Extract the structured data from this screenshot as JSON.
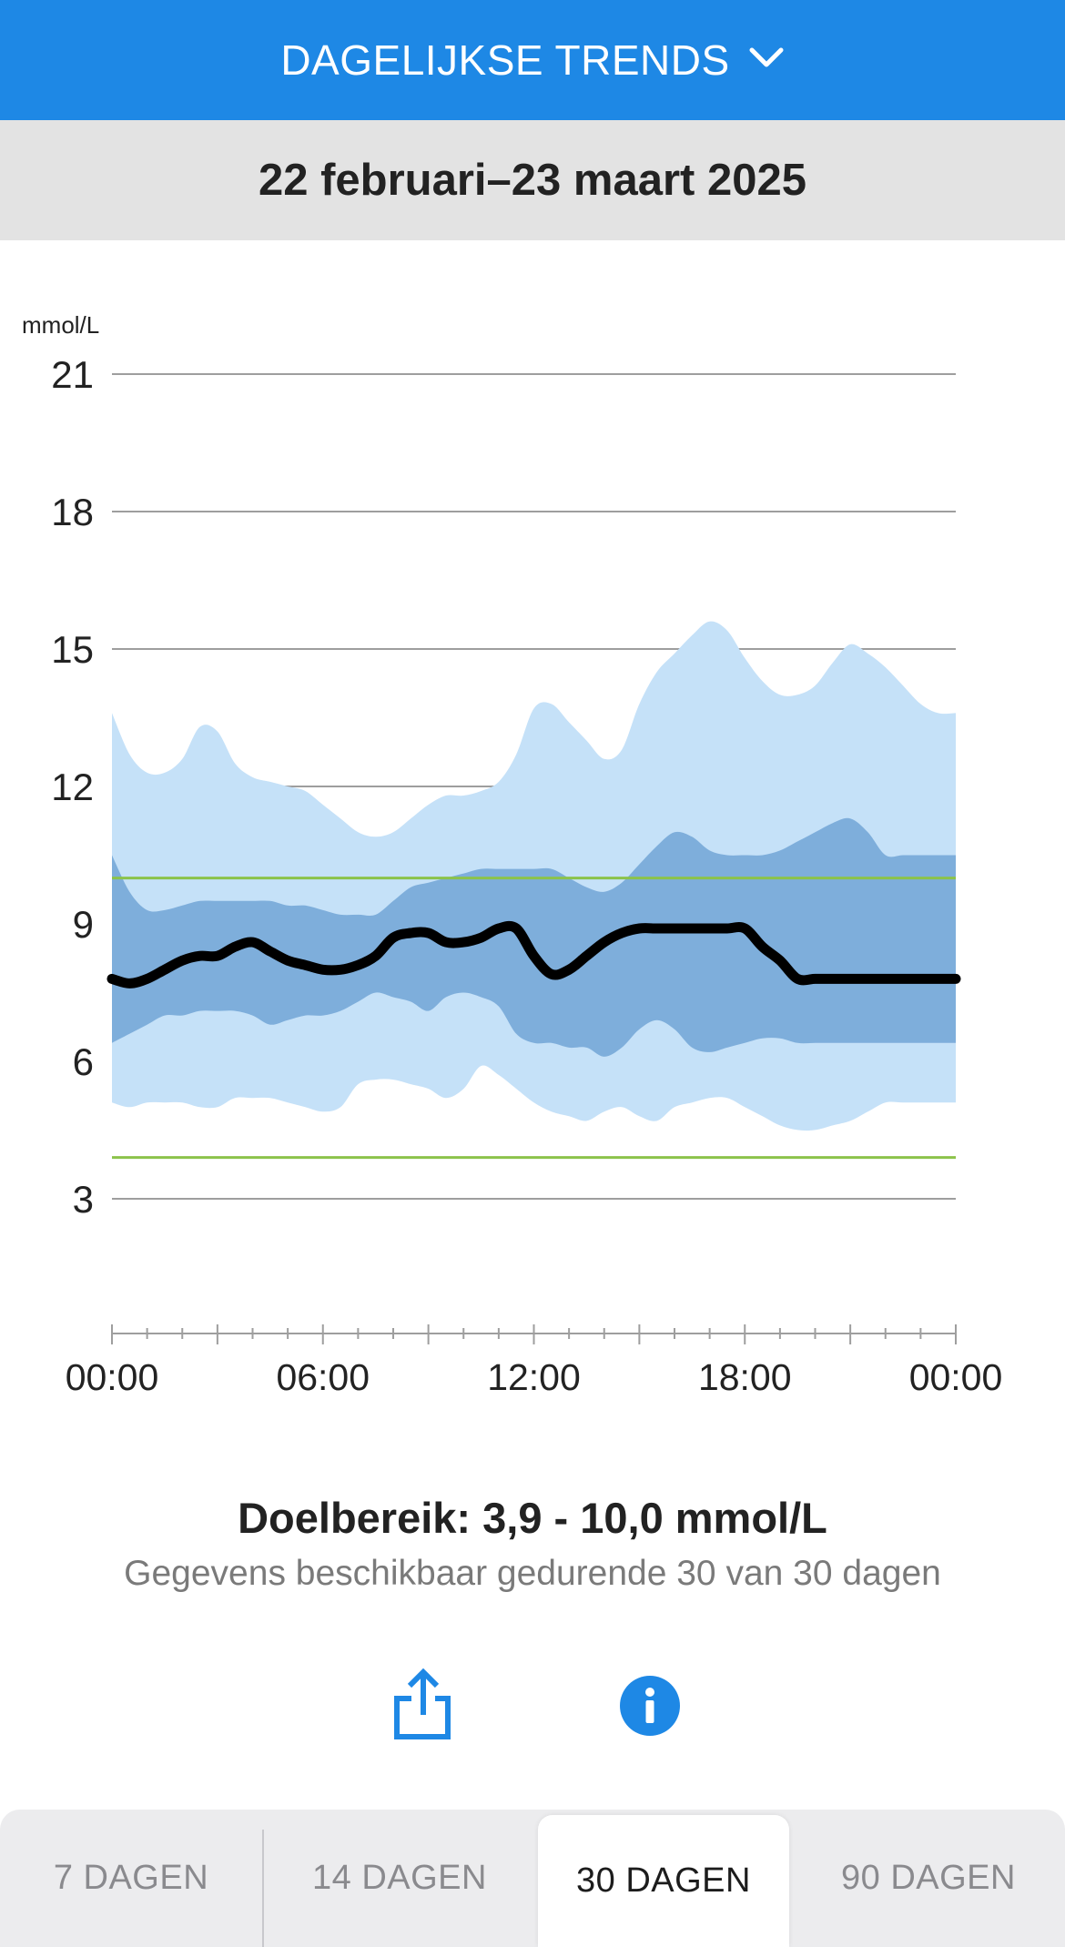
{
  "header": {
    "title": "DAGELIJKSE TRENDS",
    "chevron_icon": "chevron-down-icon"
  },
  "date_range": "22 februari–23 maart 2025",
  "chart_data": {
    "type": "area",
    "ylabel": "mmol/L",
    "y_ticks": [
      "21",
      "18",
      "15",
      "12",
      "9",
      "6",
      "3"
    ],
    "y_tick_values": [
      21,
      18,
      15,
      12,
      9,
      6,
      3
    ],
    "ylim": [
      0,
      21
    ],
    "x_ticks": [
      "00:00",
      "06:00",
      "12:00",
      "18:00",
      "00:00"
    ],
    "x_range_hours": [
      0,
      24
    ],
    "grid": true,
    "target_range": [
      3.9,
      10.0
    ],
    "target_color": "#8bc34a",
    "colors": {
      "outer_band": "#c5e1f8",
      "inner_band": "#7eaedb",
      "median": "#000000"
    },
    "hours": [
      0,
      0.5,
      1,
      1.5,
      2,
      2.5,
      3,
      3.5,
      4,
      4.5,
      5,
      5.5,
      6,
      6.5,
      7,
      7.5,
      8,
      8.5,
      9,
      9.5,
      10,
      10.5,
      11,
      11.5,
      12,
      12.5,
      13,
      13.5,
      14,
      14.5,
      15,
      15.5,
      16,
      16.5,
      17,
      17.5,
      18,
      18.5,
      19,
      19.5,
      20,
      20.5,
      21,
      21.5,
      22,
      22.5,
      23,
      23.5,
      24
    ],
    "series": [
      {
        "role": "p95",
        "values": [
          13.6,
          12.7,
          12.3,
          12.3,
          12.6,
          13.3,
          13.2,
          12.5,
          12.2,
          12.1,
          12.0,
          11.9,
          11.6,
          11.3,
          11.0,
          10.9,
          11.0,
          11.3,
          11.6,
          11.8,
          11.8,
          11.9,
          12.1,
          12.7,
          13.7,
          13.8,
          13.4,
          13.0,
          12.6,
          12.8,
          13.8,
          14.5,
          14.9,
          15.3,
          15.6,
          15.4,
          14.8,
          14.3,
          14.0,
          14.0,
          14.2,
          14.7,
          15.1,
          14.9,
          14.6,
          14.2,
          13.8,
          13.6,
          13.6
        ]
      },
      {
        "role": "p75",
        "values": [
          10.5,
          9.7,
          9.3,
          9.3,
          9.4,
          9.5,
          9.5,
          9.5,
          9.5,
          9.5,
          9.4,
          9.4,
          9.3,
          9.2,
          9.2,
          9.2,
          9.5,
          9.8,
          9.9,
          10.0,
          10.1,
          10.2,
          10.2,
          10.2,
          10.2,
          10.2,
          10.0,
          9.8,
          9.7,
          9.9,
          10.3,
          10.7,
          11.0,
          10.9,
          10.6,
          10.5,
          10.5,
          10.5,
          10.6,
          10.8,
          11.0,
          11.2,
          11.3,
          11.0,
          10.5,
          10.5,
          10.5,
          10.5,
          10.5
        ]
      },
      {
        "role": "median",
        "values": [
          7.8,
          7.7,
          7.8,
          8.0,
          8.2,
          8.3,
          8.3,
          8.5,
          8.6,
          8.4,
          8.2,
          8.1,
          8.0,
          8.0,
          8.1,
          8.3,
          8.7,
          8.8,
          8.8,
          8.6,
          8.6,
          8.7,
          8.9,
          8.9,
          8.3,
          7.9,
          8.0,
          8.3,
          8.6,
          8.8,
          8.9,
          8.9,
          8.9,
          8.9,
          8.9,
          8.9,
          8.9,
          8.5,
          8.2,
          7.8,
          7.8,
          7.8,
          7.8,
          7.8,
          7.8,
          7.8,
          7.8,
          7.8,
          7.8
        ]
      },
      {
        "role": "p25",
        "values": [
          6.4,
          6.6,
          6.8,
          7.0,
          7.0,
          7.1,
          7.1,
          7.1,
          7.0,
          6.8,
          6.9,
          7.0,
          7.0,
          7.1,
          7.3,
          7.5,
          7.4,
          7.3,
          7.1,
          7.4,
          7.5,
          7.4,
          7.2,
          6.6,
          6.4,
          6.4,
          6.3,
          6.3,
          6.1,
          6.3,
          6.7,
          6.9,
          6.7,
          6.3,
          6.2,
          6.3,
          6.4,
          6.5,
          6.5,
          6.4,
          6.4,
          6.4,
          6.4,
          6.4,
          6.4,
          6.4,
          6.4,
          6.4,
          6.4
        ]
      },
      {
        "role": "p5",
        "values": [
          5.1,
          5.0,
          5.1,
          5.1,
          5.1,
          5.0,
          5.0,
          5.2,
          5.2,
          5.2,
          5.1,
          5.0,
          4.9,
          5.0,
          5.5,
          5.6,
          5.6,
          5.5,
          5.4,
          5.2,
          5.4,
          5.9,
          5.7,
          5.4,
          5.1,
          4.9,
          4.8,
          4.7,
          4.9,
          5.0,
          4.8,
          4.7,
          5.0,
          5.1,
          5.2,
          5.2,
          5.0,
          4.8,
          4.6,
          4.5,
          4.5,
          4.6,
          4.7,
          4.9,
          5.1,
          5.1,
          5.1,
          5.1,
          5.1
        ]
      }
    ]
  },
  "target": {
    "label": "Doelbereik: 3,9 - 10,0 mmol/L"
  },
  "availability": "Gegevens beschikbaar gedurende 30 van 30 dagen",
  "actions": {
    "share_icon": "share-icon",
    "info_icon": "info-icon"
  },
  "tabs": [
    {
      "label": "7 DAGEN",
      "active": false
    },
    {
      "label": "14 DAGEN",
      "active": false
    },
    {
      "label": "30 DAGEN",
      "active": true
    },
    {
      "label": "90 DAGEN",
      "active": false
    }
  ],
  "colors": {
    "header_bg": "#1e88e5",
    "date_bar_bg": "#e3e3e3",
    "tab_bar_bg": "#ececee"
  }
}
